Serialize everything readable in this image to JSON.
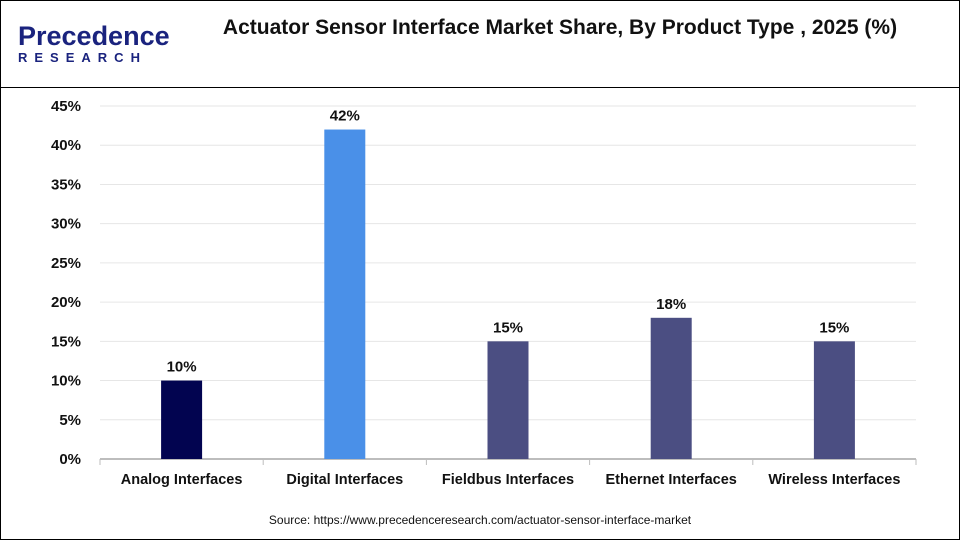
{
  "logo": {
    "line1": "Precedence",
    "line2": "RESEARCH"
  },
  "title": "Actuator Sensor Interface Market Share, By Product Type , 2025 (%)",
  "source": "Source: https://www.precedenceresearch.com/actuator-sensor-interface-market",
  "colors": {
    "analog": "#020450",
    "digital": "#4a90e8",
    "others": "#4b4e82"
  },
  "chart_data": {
    "type": "bar",
    "title": "Actuator Sensor Interface Market Share, By Product Type , 2025 (%)",
    "categories": [
      "Analog Interfaces",
      "Digital Interfaces",
      "Fieldbus Interfaces",
      "Ethernet Interfaces",
      "Wireless Interfaces"
    ],
    "values": [
      10,
      42,
      15,
      18,
      15
    ],
    "data_labels": [
      "10%",
      "42%",
      "15%",
      "18%",
      "15%"
    ],
    "bar_colors": [
      "#020450",
      "#4a90e8",
      "#4b4e82",
      "#4b4e82",
      "#4b4e82"
    ],
    "yticks": [
      "0%",
      "5%",
      "10%",
      "15%",
      "20%",
      "25%",
      "30%",
      "35%",
      "40%",
      "45%"
    ],
    "ylim": [
      0,
      45
    ],
    "xlabel": "",
    "ylabel": "",
    "grid": true,
    "legend": "none"
  }
}
